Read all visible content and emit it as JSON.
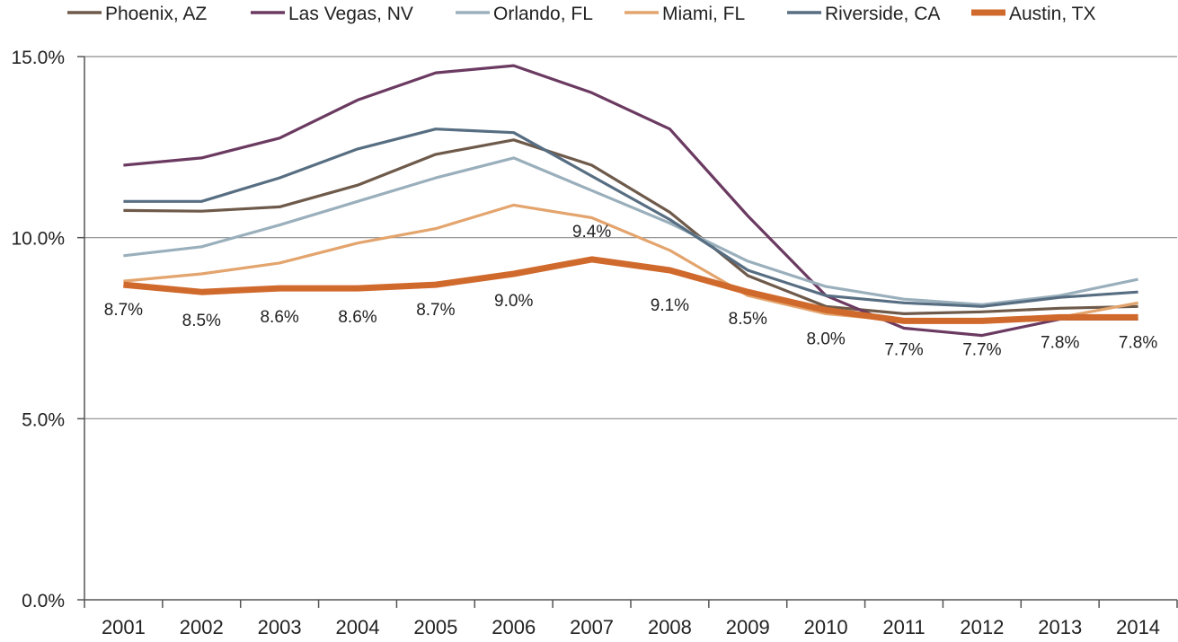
{
  "chart_data": {
    "type": "line",
    "title": "",
    "xlabel": "",
    "ylabel": "",
    "x": [
      "2001",
      "2002",
      "2003",
      "2004",
      "2005",
      "2006",
      "2007",
      "2008",
      "2009",
      "2010",
      "2011",
      "2012",
      "2013",
      "2014"
    ],
    "ylim": [
      0,
      15
    ],
    "yticks": [
      0,
      5,
      10,
      15
    ],
    "ytick_labels": [
      "0.0%",
      "5.0%",
      "10.0%",
      "15.0%"
    ],
    "grid": "horizontal",
    "legend_position": "top",
    "series": [
      {
        "name": "Phoenix, AZ",
        "color": "#6e5a4a",
        "values": [
          10.75,
          10.73,
          10.85,
          11.45,
          12.3,
          12.7,
          12.0,
          10.7,
          8.95,
          8.1,
          7.9,
          7.95,
          8.05,
          8.1
        ]
      },
      {
        "name": "Las Vegas, NV",
        "color": "#6b3a61",
        "values": [
          12.0,
          12.2,
          12.75,
          13.8,
          14.55,
          14.75,
          14.0,
          13.0,
          10.6,
          8.4,
          7.5,
          7.3,
          7.75,
          7.75
        ]
      },
      {
        "name": "Orlando, FL",
        "color": "#9aafbc",
        "values": [
          9.5,
          9.75,
          10.35,
          11.0,
          11.65,
          12.2,
          11.3,
          10.4,
          9.35,
          8.65,
          8.3,
          8.15,
          8.4,
          8.85
        ]
      },
      {
        "name": "Miami, FL",
        "color": "#e3a46d",
        "values": [
          8.8,
          9.0,
          9.3,
          9.85,
          10.25,
          10.9,
          10.55,
          9.65,
          8.4,
          7.9,
          7.7,
          7.7,
          7.8,
          8.2
        ]
      },
      {
        "name": "Riverside, CA",
        "color": "#576e82",
        "values": [
          11.0,
          11.0,
          11.65,
          12.45,
          13.0,
          12.9,
          11.7,
          10.5,
          9.1,
          8.4,
          8.2,
          8.1,
          8.35,
          8.5
        ]
      },
      {
        "name": "Austin, TX",
        "color": "#d0692c",
        "highlight": true,
        "values": [
          8.7,
          8.5,
          8.6,
          8.6,
          8.7,
          9.0,
          9.4,
          9.1,
          8.5,
          8.0,
          7.7,
          7.7,
          7.8,
          7.8
        ],
        "data_labels": [
          "8.7%",
          "8.5%",
          "8.6%",
          "8.6%",
          "8.7%",
          "9.0%",
          "9.4%",
          "9.1%",
          "8.5%",
          "8.0%",
          "7.7%",
          "7.7%",
          "7.8%",
          "7.8%"
        ]
      }
    ]
  }
}
